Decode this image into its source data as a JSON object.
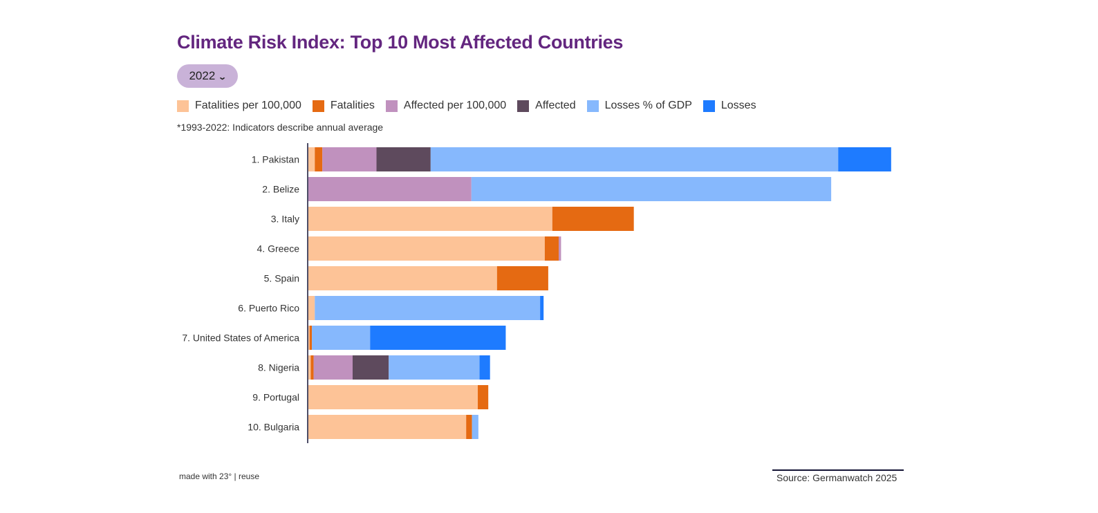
{
  "header": {
    "title": "Climate Risk Index: Top 10 Most Affected Countries",
    "year_selector": {
      "selected": "2022"
    },
    "note": "*1993-2022: Indicators describe  annual average"
  },
  "legend": [
    {
      "label": "Fatalities per 100,000",
      "color": "#fdc397"
    },
    {
      "label": "Fatalities",
      "color": "#e56a12"
    },
    {
      "label": "Affected per 100,000",
      "color": "#c091be"
    },
    {
      "label": "Affected",
      "color": "#5e4a5d"
    },
    {
      "label": "Losses % of GDP",
      "color": "#86b8fd"
    },
    {
      "label": "Losses",
      "color": "#1e7bff"
    }
  ],
  "footer": {
    "made_with": "made with 23°",
    "separator": "|",
    "reuse": "reuse",
    "source": "Source: Germanwatch 2025"
  },
  "chart_data": {
    "type": "bar",
    "orientation": "horizontal",
    "stacked": true,
    "title": "Climate Risk Index: Top 10 Most Affected Countries",
    "xlabel": "",
    "ylabel": "",
    "xlim": [
      0,
      100
    ],
    "grid": false,
    "legend_position": "top-left",
    "categories": [
      "1. Pakistan",
      "2. Belize",
      "3. Italy",
      "4. Greece",
      "5. Spain",
      "6. Puerto Rico",
      "7. United States of America",
      "8. Nigeria",
      "9. Portugal",
      "10. Bulgaria"
    ],
    "series": [
      {
        "name": "Fatalities per 100,000",
        "color": "#fdc397",
        "values": [
          1.1,
          0,
          41.9,
          40.6,
          32.4,
          1.1,
          0.2,
          0.4,
          29.1,
          27.1
        ]
      },
      {
        "name": "Fatalities",
        "color": "#e56a12",
        "values": [
          1.3,
          0,
          14.0,
          2.4,
          8.8,
          0,
          0.4,
          0.5,
          1.8,
          1.0
        ]
      },
      {
        "name": "Affected per 100,000",
        "color": "#c091be",
        "values": [
          9.3,
          28.0,
          0,
          0.4,
          0,
          0,
          0,
          6.7,
          0,
          0
        ]
      },
      {
        "name": "Affected",
        "color": "#5e4a5d",
        "values": [
          9.3,
          0,
          0,
          0,
          0,
          0,
          0,
          6.2,
          0,
          0
        ]
      },
      {
        "name": "Losses % of GDP",
        "color": "#86b8fd",
        "values": [
          70.0,
          61.8,
          0,
          0,
          0,
          38.7,
          10.0,
          15.6,
          0,
          1.1
        ]
      },
      {
        "name": "Losses",
        "color": "#1e7bff",
        "values": [
          9.1,
          0,
          0,
          0,
          0,
          0.6,
          23.3,
          1.8,
          0,
          0
        ]
      }
    ]
  }
}
